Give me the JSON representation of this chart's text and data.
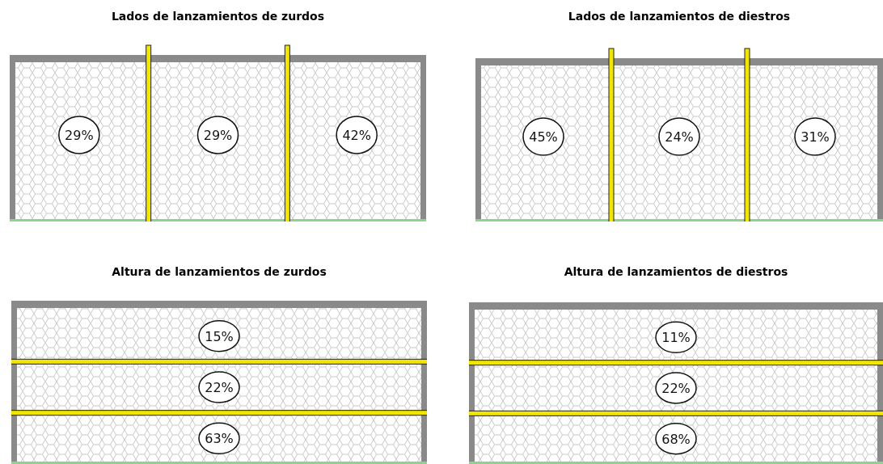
{
  "chart_data": [
    {
      "type": "other",
      "title": "Lados de lanzamientos de zurdos",
      "categories": [
        null,
        null,
        null
      ],
      "values": [
        29,
        29,
        42
      ],
      "value_labels": [
        "29%",
        "29%",
        "42%"
      ]
    },
    {
      "type": "other",
      "title": "Lados de lanzamientos de diestros",
      "categories": [
        null,
        null,
        null
      ],
      "values": [
        45,
        24,
        31
      ],
      "value_labels": [
        "45%",
        "24%",
        "31%"
      ]
    },
    {
      "type": "other",
      "title": "Altura de lanzamientos de zurdos",
      "categories": [
        null,
        null,
        null
      ],
      "values": [
        15,
        22,
        63
      ],
      "value_labels": [
        "15%",
        "22%",
        "63%"
      ]
    },
    {
      "type": "other",
      "title": "Altura de lanzamientos de diestros",
      "categories": [
        null,
        null,
        null
      ],
      "values": [
        11,
        22,
        68
      ],
      "value_labels": [
        "11%",
        "22%",
        "68%"
      ]
    }
  ]
}
